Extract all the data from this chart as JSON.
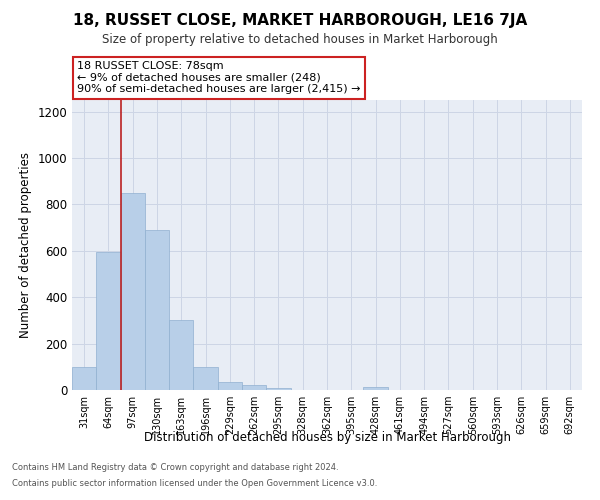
{
  "title": "18, RUSSET CLOSE, MARKET HARBOROUGH, LE16 7JA",
  "subtitle": "Size of property relative to detached houses in Market Harborough",
  "xlabel": "Distribution of detached houses by size in Market Harborough",
  "ylabel": "Number of detached properties",
  "footer1": "Contains HM Land Registry data © Crown copyright and database right 2024.",
  "footer2": "Contains public sector information licensed under the Open Government Licence v3.0.",
  "categories": [
    "31sqm",
    "64sqm",
    "97sqm",
    "130sqm",
    "163sqm",
    "196sqm",
    "229sqm",
    "262sqm",
    "295sqm",
    "328sqm",
    "362sqm",
    "395sqm",
    "428sqm",
    "461sqm",
    "494sqm",
    "527sqm",
    "560sqm",
    "593sqm",
    "626sqm",
    "659sqm",
    "692sqm"
  ],
  "values": [
    100,
    595,
    848,
    690,
    300,
    100,
    33,
    22,
    10,
    0,
    0,
    0,
    15,
    0,
    0,
    0,
    0,
    0,
    0,
    0,
    0
  ],
  "bar_color": "#b8cfe8",
  "bar_edge_color": "#90b0d0",
  "grid_color": "#cdd5e5",
  "background_color": "#e8edf5",
  "annotation_text": "18 RUSSET CLOSE: 78sqm\n← 9% of detached houses are smaller (248)\n90% of semi-detached houses are larger (2,415) →",
  "vline_x": 1.5,
  "vline_color": "#bb2222",
  "annotation_box_color": "#ffffff",
  "annotation_box_edge_color": "#cc2222",
  "ylim": [
    0,
    1250
  ],
  "yticks": [
    0,
    200,
    400,
    600,
    800,
    1000,
    1200
  ]
}
